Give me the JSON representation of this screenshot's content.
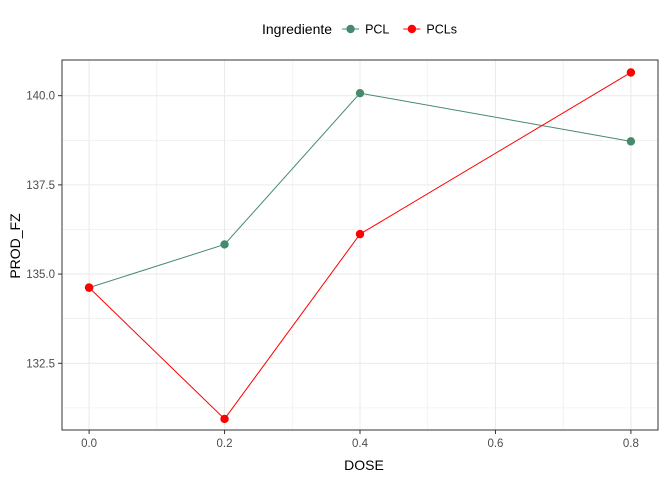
{
  "chart_data": {
    "type": "line",
    "x": [
      0.0,
      0.2,
      0.4,
      0.8
    ],
    "series": [
      {
        "name": "PCL",
        "color": "#468a6e",
        "values": [
          134.62,
          135.83,
          140.07,
          138.72
        ]
      },
      {
        "name": "PCLs",
        "color": "#ff0000",
        "values": [
          134.62,
          130.94,
          136.12,
          140.65
        ]
      }
    ],
    "xlabel": "DOSE",
    "ylabel": "PROD_FZ",
    "xlim": [
      -0.04,
      0.84
    ],
    "ylim": [
      130.63,
      141.0
    ],
    "x_ticks": [
      0.0,
      0.2,
      0.4,
      0.6,
      0.8
    ],
    "x_tick_labels": [
      "0.0",
      "0.2",
      "0.4",
      "0.6",
      "0.8"
    ],
    "y_ticks": [
      132.5,
      135.0,
      137.5,
      140.0
    ],
    "y_tick_labels": [
      "132.5",
      "135.0",
      "137.5",
      "140.0"
    ],
    "legend": {
      "title": "Ingrediente",
      "position": "top"
    },
    "grid": true,
    "theme": {
      "grid_color": "#ebebeb",
      "panel_border_color": "#333333"
    }
  }
}
